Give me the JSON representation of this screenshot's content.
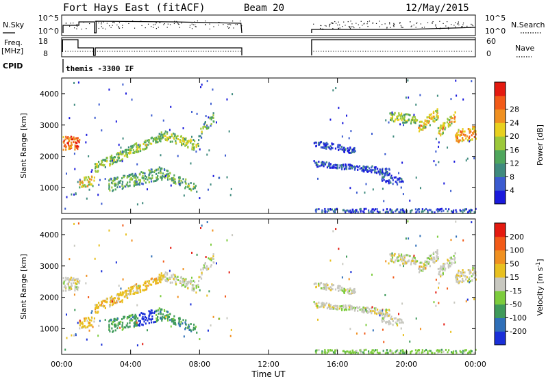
{
  "header": {
    "station": "Fort Hays East (fitACF)",
    "beam": "Beam 20",
    "date": "12/May/2015"
  },
  "aux": {
    "nsky_label": "N.Sky",
    "nsky_ticks": [
      "10^5",
      "10^0"
    ],
    "nsearch_label": "N.Search",
    "nsearch_ticks": [
      "10^5",
      "10^0"
    ],
    "freq_label": "Freq.",
    "freq_unit": "[MHz]",
    "freq_ticks": [
      "18",
      "8"
    ],
    "nave_label": "Nave",
    "nave_ticks": [
      "60",
      "0"
    ],
    "cpid_label": "CPID",
    "cpid_value": "themis -3300 IF"
  },
  "chart_data": [
    {
      "type": "heatmap",
      "panel": "power",
      "ylabel": "Slant Range [km]",
      "xlabel": "",
      "yticks": [
        "1000",
        "2000",
        "3000",
        "4000"
      ],
      "ylim": [
        180,
        4500
      ],
      "xlim": [
        0,
        24
      ],
      "colorbar": {
        "label": "Power [dB]",
        "ticks": [
          "4",
          "8",
          "12",
          "16",
          "20",
          "24",
          "28"
        ],
        "colors": [
          "#1a1adc",
          "#3b5bd0",
          "#3f8a7e",
          "#4fa65c",
          "#9cc83a",
          "#e8d01e",
          "#f09020",
          "#f25a18",
          "#e41a10"
        ]
      },
      "data_gap": [
        10.45,
        14.5
      ]
    },
    {
      "type": "heatmap",
      "panel": "velocity",
      "ylabel": "Slant Range [km]",
      "xlabel": "Time UT",
      "yticks": [
        "1000",
        "2000",
        "3000",
        "4000"
      ],
      "ylim": [
        180,
        4500
      ],
      "xlim": [
        0,
        24
      ],
      "xticks": [
        "00:00",
        "04:00",
        "08:00",
        "12:00",
        "16:00",
        "20:00",
        "00:00"
      ],
      "colorbar": {
        "label": "Velocity [m s",
        "superscript": "-1",
        "label_end": "]",
        "ticks": [
          "200",
          "100",
          "50",
          "15",
          "-15",
          "-50",
          "-100",
          "-200"
        ],
        "colors": [
          "#1a2fd8",
          "#2f6fb8",
          "#3f9a5a",
          "#7ccc3c",
          "#c8c8c0",
          "#e8c020",
          "#f09020",
          "#f25a18",
          "#e41a10"
        ]
      },
      "data_gap": [
        10.45,
        14.5
      ]
    }
  ]
}
